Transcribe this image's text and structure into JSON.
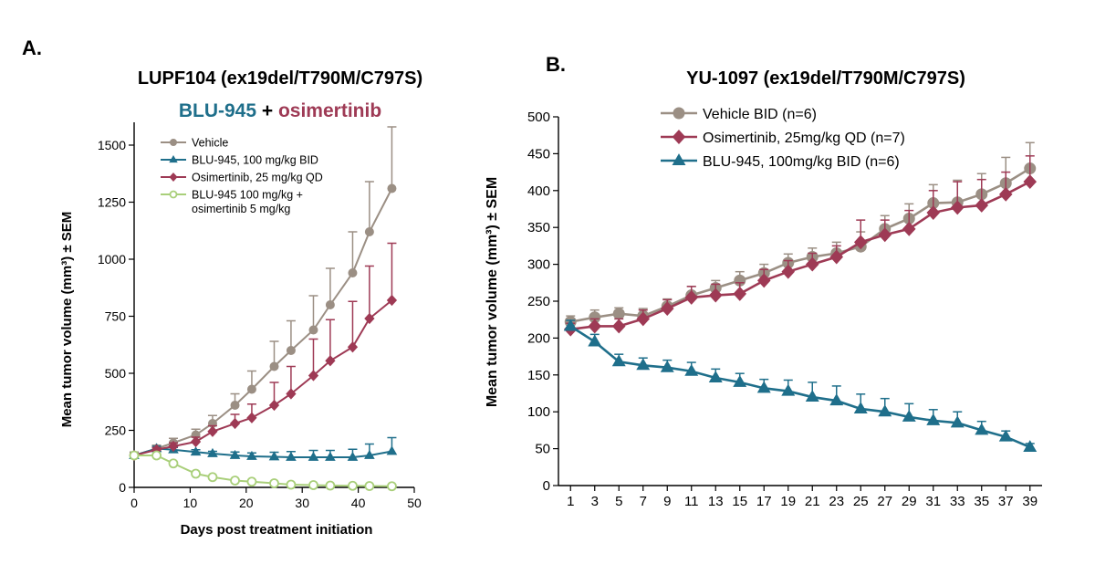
{
  "colors": {
    "vehicle": "#9b8f84",
    "vehicle_fill": "#9b8f84",
    "blu945": "#1f6f8b",
    "osimertinib": "#9e3a55",
    "combo": "#a9cf7a",
    "axis": "#000000"
  },
  "chart_data": [
    {
      "type": "line",
      "panel_label": "A.",
      "title": "LUPF104 (ex19del/T790M/C797S)",
      "subtitle": {
        "part1": "BLU-945",
        "plus": " + ",
        "part2": "osimertinib"
      },
      "xlabel": "Days post treatment initiation",
      "ylabel": "Mean tumor volume (mm³) ± SEM",
      "xlim": [
        0,
        50
      ],
      "ylim": [
        0,
        1600
      ],
      "xticks": [
        0,
        10,
        20,
        30,
        40,
        50
      ],
      "yticks": [
        0,
        250,
        500,
        750,
        1000,
        1250,
        1500
      ],
      "legend_position": "top-left",
      "series": [
        {
          "key": "vehicle",
          "name": "Vehicle",
          "marker": "circle",
          "x": [
            0,
            4,
            7,
            11,
            14,
            18,
            21,
            25,
            28,
            32,
            35,
            39,
            42,
            46
          ],
          "y": [
            140,
            170,
            195,
            230,
            280,
            360,
            430,
            530,
            600,
            690,
            800,
            940,
            1120,
            1310
          ],
          "err": [
            15,
            15,
            20,
            25,
            35,
            50,
            80,
            110,
            130,
            150,
            160,
            180,
            220,
            270
          ]
        },
        {
          "key": "blu945",
          "name": "BLU-945, 100 mg/kg BID",
          "marker": "triangle",
          "x": [
            0,
            4,
            7,
            11,
            14,
            18,
            21,
            25,
            28,
            32,
            35,
            39,
            42,
            46
          ],
          "y": [
            140,
            170,
            165,
            155,
            148,
            140,
            136,
            134,
            132,
            132,
            132,
            132,
            140,
            158
          ],
          "err": [
            10,
            10,
            10,
            10,
            10,
            15,
            15,
            20,
            25,
            30,
            30,
            35,
            50,
            60
          ]
        },
        {
          "key": "osimertinib",
          "name": "Osimertinib, 25 mg/kg QD",
          "marker": "diamond",
          "x": [
            0,
            4,
            7,
            11,
            14,
            18,
            21,
            25,
            28,
            32,
            35,
            39,
            42,
            46
          ],
          "y": [
            140,
            165,
            180,
            200,
            245,
            280,
            305,
            360,
            410,
            490,
            555,
            615,
            740,
            820
          ],
          "err": [
            10,
            10,
            15,
            20,
            25,
            40,
            60,
            100,
            120,
            160,
            180,
            200,
            230,
            250
          ]
        },
        {
          "key": "combo",
          "name": "BLU-945 100 mg/kg + osimertinib 5 mg/kg",
          "legend_lines": [
            "BLU-945 100 mg/kg +",
            "osimertinib 5 mg/kg"
          ],
          "marker": "open-circle",
          "x": [
            0,
            4,
            7,
            11,
            14,
            18,
            21,
            25,
            28,
            32,
            35,
            39,
            42,
            46
          ],
          "y": [
            140,
            140,
            105,
            60,
            45,
            30,
            25,
            18,
            12,
            10,
            8,
            7,
            6,
            5
          ],
          "err": [
            0,
            0,
            0,
            0,
            0,
            0,
            0,
            0,
            0,
            0,
            0,
            0,
            0,
            0
          ]
        }
      ]
    },
    {
      "type": "line",
      "panel_label": "B.",
      "title": "YU-1097 (ex19del/T790M/C797S)",
      "xlabel": "",
      "ylabel": "Mean tumor volume (mm³) ± SEM",
      "xlim": [
        0,
        40
      ],
      "ylim": [
        0,
        500
      ],
      "xticks": [
        1,
        3,
        5,
        7,
        9,
        11,
        13,
        15,
        17,
        19,
        21,
        23,
        25,
        27,
        29,
        31,
        33,
        35,
        37,
        39
      ],
      "yticks": [
        0,
        50,
        100,
        150,
        200,
        250,
        300,
        350,
        400,
        450,
        500
      ],
      "legend_position": "top-left",
      "series": [
        {
          "key": "vehicle",
          "name": "Vehicle BID (n=6)",
          "marker": "circle",
          "x": [
            1,
            3,
            5,
            7,
            9,
            11,
            13,
            15,
            17,
            19,
            21,
            23,
            25,
            27,
            29,
            31,
            33,
            35,
            37,
            39
          ],
          "y": [
            222,
            228,
            233,
            230,
            243,
            258,
            268,
            278,
            288,
            302,
            310,
            315,
            324,
            348,
            362,
            383,
            384,
            395,
            410,
            430
          ],
          "err": [
            8,
            10,
            8,
            10,
            10,
            12,
            10,
            12,
            12,
            12,
            12,
            15,
            20,
            18,
            20,
            25,
            30,
            28,
            35,
            35
          ]
        },
        {
          "key": "osimertinib",
          "name": "Osimertinib, 25mg/kg QD (n=7)",
          "marker": "diamond",
          "x": [
            1,
            3,
            5,
            7,
            9,
            11,
            13,
            15,
            17,
            19,
            21,
            23,
            25,
            27,
            29,
            31,
            33,
            35,
            37,
            39
          ],
          "y": [
            212,
            216,
            216,
            226,
            240,
            255,
            258,
            260,
            278,
            290,
            300,
            310,
            330,
            340,
            348,
            370,
            377,
            380,
            395,
            412
          ],
          "err": [
            8,
            10,
            10,
            12,
            12,
            15,
            15,
            15,
            15,
            15,
            15,
            15,
            30,
            20,
            25,
            30,
            35,
            35,
            30,
            35
          ]
        },
        {
          "key": "blu945",
          "name": "BLU-945, 100mg/kg BID (n=6)",
          "marker": "triangle",
          "x": [
            1,
            3,
            5,
            7,
            9,
            11,
            13,
            15,
            17,
            19,
            21,
            23,
            25,
            27,
            29,
            31,
            33,
            35,
            37,
            39
          ],
          "y": [
            216,
            195,
            168,
            163,
            160,
            155,
            146,
            140,
            132,
            128,
            120,
            115,
            104,
            100,
            93,
            88,
            85,
            75,
            66,
            52
          ],
          "err": [
            8,
            10,
            10,
            10,
            10,
            12,
            12,
            12,
            12,
            15,
            20,
            20,
            20,
            18,
            18,
            15,
            15,
            12,
            8,
            5
          ]
        }
      ]
    }
  ]
}
